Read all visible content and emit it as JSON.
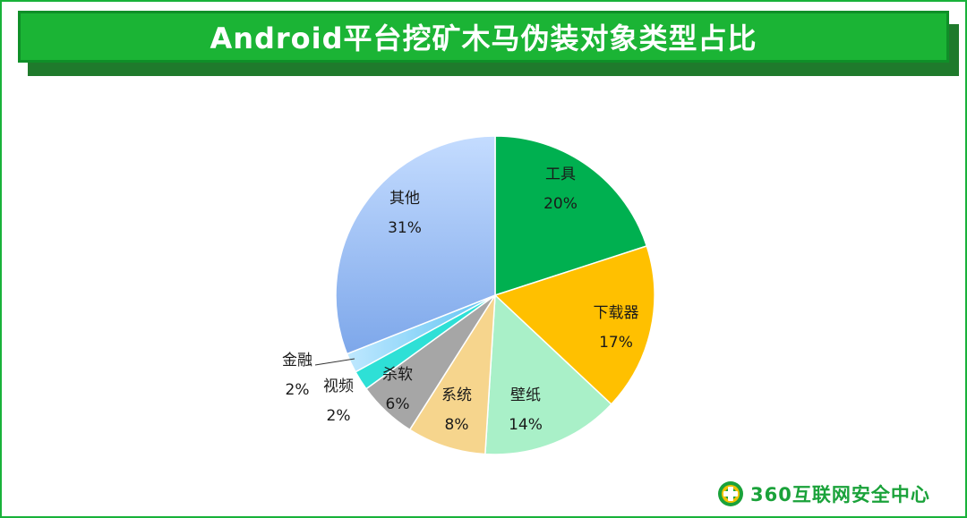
{
  "banner": {
    "title": "Android平台挖矿木马伪装对象类型占比"
  },
  "brand": {
    "logo_icon": "360-shield-logo",
    "text": "360互联网安全中心",
    "color": "#1aa23a"
  },
  "chart_data": {
    "type": "pie",
    "title": "Android平台挖矿木马伪装对象类型占比",
    "start_angle": "12 o'clock, clockwise",
    "slices": [
      {
        "label": "工具",
        "value": 20,
        "display": "20%",
        "color": "#00b050"
      },
      {
        "label": "下载器",
        "value": 17,
        "display": "17%",
        "color": "#ffc000"
      },
      {
        "label": "壁纸",
        "value": 14,
        "display": "14%",
        "color": "#a9f0c8"
      },
      {
        "label": "系统",
        "value": 8,
        "display": "8%",
        "color": "#f6d58d"
      },
      {
        "label": "杀软",
        "value": 6,
        "display": "6%",
        "color": "#a6a6a6"
      },
      {
        "label": "视频",
        "value": 2,
        "display": "2%",
        "color": "#2ee0d6"
      },
      {
        "label": "金融",
        "value": 2,
        "display": "2%",
        "color": "#7fcff5"
      },
      {
        "label": "其他",
        "value": 31,
        "display": "31%",
        "color": "#9bbcf4"
      }
    ]
  }
}
